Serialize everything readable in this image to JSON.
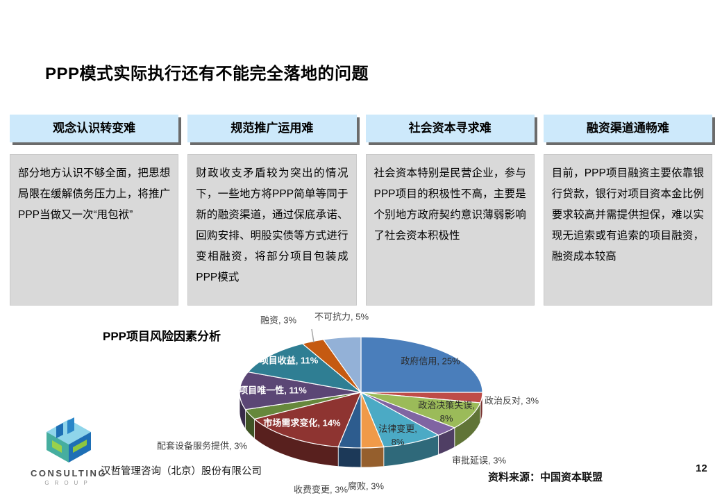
{
  "slide": {
    "title": "PPP模式实际执行还有不能完全落地的问题",
    "page_number": "12",
    "source": "资料来源：中国资本联盟",
    "footer_company": "汉哲管理咨询（北京）股份有限公司"
  },
  "logo": {
    "line1": "CONSULTING",
    "line2": "GROUP"
  },
  "columns": [
    {
      "header": "观念认识转变难",
      "body": "部分地方认识不够全面，把思想局限在缓解债务压力上，将推广PPP当做又一次“甩包袱”"
    },
    {
      "header": "规范推广运用难",
      "body": "财政收支矛盾较为突出的情况下，一些地方将PPP简单等同于新的融资渠道，通过保底承诺、回购安排、明股实债等方式进行变相融资，将部分项目包装成PPP模式"
    },
    {
      "header": "社会资本寻求难",
      "body": "社会资本特别是民营企业，参与PPP项目的积极性不高，主要是个别地方政府契约意识薄弱影响了社会资本积极性"
    },
    {
      "header": "融资渠道通畅难",
      "body": "目前，PPP项目融资主要依靠银行贷款，银行对项目资本金比例要求较高并需提供担保，难以实现无追索或有追索的项目融资，融资成本较高"
    }
  ],
  "chart_data": {
    "type": "pie",
    "style": "3d",
    "title": "PPP项目风险因素分析",
    "start_angle_deg": 0,
    "direction": "clockwise",
    "unit": "%",
    "slices": [
      {
        "label": "政府信用",
        "value": 25,
        "color": "#4a7ebb"
      },
      {
        "label": "政治反对",
        "value": 3,
        "color": "#bf4c48"
      },
      {
        "label": "政治决策失误",
        "value": 8,
        "color": "#9bbb59"
      },
      {
        "label": "审批延误",
        "value": 3,
        "color": "#8064a2"
      },
      {
        "label": "法律变更",
        "value": 8,
        "color": "#4baac5"
      },
      {
        "label": "腐败",
        "value": 3,
        "color": "#f09a49"
      },
      {
        "label": "收费变更",
        "value": 3,
        "color": "#2d5c8e"
      },
      {
        "label": "市场需求变化",
        "value": 14,
        "color": "#8e3431"
      },
      {
        "label": "配套设备服务提供",
        "value": 3,
        "color": "#66883c"
      },
      {
        "label": "项目唯一性",
        "value": 11,
        "color": "#5b4675"
      },
      {
        "label": "项目收益",
        "value": 11,
        "color": "#2f7e93"
      },
      {
        "label": "融资",
        "value": 3,
        "color": "#c55a11"
      },
      {
        "label": "不可抗力",
        "value": 5,
        "color": "#93b1d7"
      }
    ]
  }
}
